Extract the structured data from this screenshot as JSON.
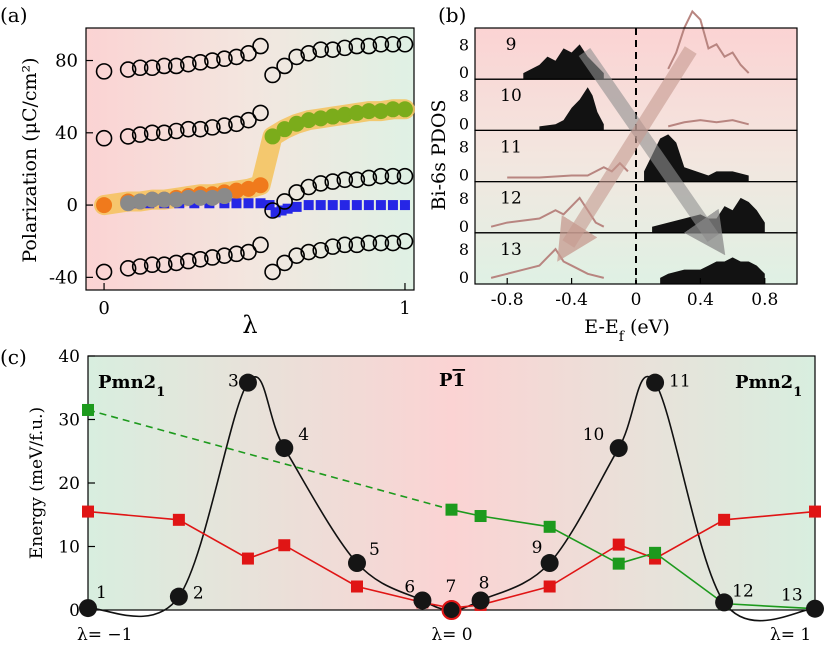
{
  "panel_labels": {
    "a": "(a)",
    "b": "(b)",
    "c": "(c)"
  },
  "colors": {
    "orange": "#f07a1c",
    "green": "#7bac1b",
    "blue": "#2626e6",
    "gray": "#8a8a8a",
    "highlight": "#f5c25a",
    "black_marker": "#151515",
    "red_line": "#e01515",
    "green_line": "#1d9a1d",
    "pdos_curve": "#b88580",
    "arrow": "#c59a8f"
  },
  "chart_data": [
    {
      "id": "a",
      "type": "scatter",
      "title": "",
      "xlabel": "λ",
      "ylabel": "Polarization (μC/cm²)",
      "xlim": [
        -0.06,
        1.03
      ],
      "ylim": [
        -47,
        98
      ],
      "xticks": [
        "0",
        "1"
      ],
      "yticks": [
        "-40",
        "0",
        "40",
        "80"
      ],
      "series": [
        {
          "role": "open_branch_1_left",
          "x": [
            0.0,
            0.08,
            0.12,
            0.16,
            0.2,
            0.24,
            0.28,
            0.32,
            0.36,
            0.4,
            0.44,
            0.48,
            0.52
          ],
          "y": [
            74,
            75,
            76,
            76,
            77,
            77,
            78,
            79,
            80,
            81,
            82,
            84,
            88
          ]
        },
        {
          "role": "open_branch_1_right",
          "x": [
            0.56,
            0.6,
            0.64,
            0.68,
            0.72,
            0.76,
            0.8,
            0.84,
            0.88,
            0.92,
            0.96,
            1.0
          ],
          "y": [
            72,
            77,
            82,
            84,
            86,
            86,
            87,
            88,
            88,
            89,
            89,
            89
          ]
        },
        {
          "role": "open_branch_2_left",
          "x": [
            0.0,
            0.08,
            0.12,
            0.16,
            0.2,
            0.24,
            0.28,
            0.32,
            0.36,
            0.4,
            0.44,
            0.48,
            0.52
          ],
          "y": [
            37,
            38,
            39,
            40,
            40,
            41,
            42,
            42,
            43,
            44,
            45,
            47,
            51
          ]
        },
        {
          "role": "open_branch_2_right",
          "x": [
            0.56,
            0.6,
            0.64,
            0.68,
            0.72,
            0.76,
            0.8,
            0.84,
            0.88,
            0.92,
            0.96,
            1.0
          ],
          "y": [
            -3,
            2,
            7,
            10,
            12,
            13,
            14,
            14,
            15,
            16,
            16,
            16
          ]
        },
        {
          "role": "open_branch_3_left",
          "x": [
            0.0,
            0.08,
            0.12,
            0.16,
            0.2,
            0.24,
            0.28,
            0.32,
            0.36,
            0.4,
            0.44,
            0.48,
            0.52
          ],
          "y": [
            -37,
            -35,
            -34,
            -33,
            -33,
            -32,
            -31,
            -30,
            -29,
            -28,
            -27,
            -26,
            -22
          ]
        },
        {
          "role": "open_branch_3_right",
          "x": [
            0.56,
            0.6,
            0.64,
            0.68,
            0.72,
            0.76,
            0.8,
            0.84,
            0.88,
            0.92,
            0.96,
            1.0
          ],
          "y": [
            -37,
            -32,
            -28,
            -26,
            -25,
            -23,
            -22,
            -22,
            -21,
            -21,
            -21,
            -20
          ]
        },
        {
          "role": "orange_filled",
          "x": [
            0.0,
            0.08,
            0.12,
            0.16,
            0.2,
            0.24,
            0.28,
            0.32,
            0.36,
            0.4,
            0.44,
            0.48,
            0.52
          ],
          "y": [
            0,
            2,
            2,
            3,
            3,
            4,
            5,
            6,
            6,
            7,
            8,
            9,
            11
          ]
        },
        {
          "role": "green_filled",
          "x": [
            0.56,
            0.6,
            0.64,
            0.68,
            0.72,
            0.76,
            0.8,
            0.84,
            0.88,
            0.92,
            0.96,
            1.0
          ],
          "y": [
            38,
            42,
            45,
            47,
            48,
            49,
            50,
            51,
            52,
            52,
            53,
            53
          ]
        },
        {
          "role": "gray_filled",
          "x": [
            0.08,
            0.12,
            0.16,
            0.2,
            0.24,
            0.28,
            0.32,
            0.36,
            0.4
          ],
          "y": [
            1,
            2,
            3,
            3,
            3,
            4,
            4,
            4,
            5
          ]
        },
        {
          "role": "blue_squares",
          "x": [
            0.1,
            0.15,
            0.2,
            0.25,
            0.3,
            0.35,
            0.4,
            0.44,
            0.48,
            0.52,
            0.55,
            0.57,
            0.59,
            0.61,
            0.64,
            0.68,
            0.72,
            0.76,
            0.8,
            0.84,
            0.88,
            0.92,
            0.96,
            1.0
          ],
          "y": [
            1,
            1,
            1,
            1,
            1,
            1,
            1,
            1,
            1,
            1,
            0,
            -4,
            -3,
            -2,
            -1,
            0,
            0,
            0,
            0,
            0,
            0,
            0,
            0,
            0
          ]
        }
      ]
    },
    {
      "id": "b",
      "type": "area",
      "title": "",
      "xlabel": "E-E_f (eV)",
      "ylabel": "Bi-6s PDOS",
      "xlim": [
        -1.0,
        1.0
      ],
      "xticks": [
        "-0.8",
        "-0.4",
        "0",
        "0.4",
        "0.8"
      ],
      "ytick_labels": [
        "0",
        "8"
      ],
      "panels": [
        {
          "label": "9",
          "filled_x": [
            -0.7,
            -0.6,
            -0.55,
            -0.5,
            -0.45,
            -0.4,
            -0.35,
            -0.3,
            -0.25,
            -0.2
          ],
          "filled_y": [
            1,
            3,
            5,
            4,
            7,
            6,
            8,
            5,
            3,
            1
          ],
          "curve_x": [
            0.2,
            0.25,
            0.3,
            0.35,
            0.4,
            0.45,
            0.5,
            0.55,
            0.6,
            0.65,
            0.7
          ],
          "curve_y": [
            2,
            6,
            12,
            16,
            14,
            7,
            8,
            5,
            6,
            3,
            1
          ]
        },
        {
          "label": "10",
          "filled_x": [
            -0.6,
            -0.5,
            -0.45,
            -0.4,
            -0.35,
            -0.3,
            -0.27,
            -0.24,
            -0.2
          ],
          "filled_y": [
            0.5,
            1,
            2,
            5,
            7,
            10,
            8,
            4,
            1
          ],
          "curve_x": [
            0.2,
            0.3,
            0.4,
            0.5,
            0.6,
            0.7
          ],
          "curve_y": [
            0.5,
            1.5,
            2,
            1.5,
            2,
            1
          ]
        },
        {
          "label": "11",
          "filled_x": [
            0.05,
            0.1,
            0.15,
            0.2,
            0.25,
            0.3,
            0.45,
            0.5,
            0.55,
            0.6,
            0.7
          ],
          "filled_y": [
            2,
            6,
            10,
            11,
            9,
            3,
            1,
            2,
            2,
            2,
            1
          ],
          "curve_x": [
            -0.8,
            -0.6,
            -0.4,
            -0.3,
            -0.2,
            -0.15,
            -0.1,
            -0.05
          ],
          "curve_y": [
            0.5,
            0.5,
            1,
            1,
            3,
            2,
            4,
            2
          ]
        },
        {
          "label": "12",
          "filled_x": [
            0.1,
            0.2,
            0.3,
            0.4,
            0.45,
            0.5,
            0.55,
            0.6,
            0.65,
            0.7,
            0.75,
            0.8
          ],
          "filled_y": [
            1,
            2,
            3,
            4,
            3,
            3,
            6,
            5,
            8,
            7,
            5,
            2
          ],
          "curve_x": [
            -0.9,
            -0.8,
            -0.6,
            -0.5,
            -0.45,
            -0.4,
            -0.35,
            -0.3,
            -0.25,
            -0.2
          ],
          "curve_y": [
            1,
            2,
            3,
            5,
            4,
            6,
            8,
            5,
            2,
            1
          ]
        },
        {
          "label": "13",
          "filled_x": [
            0.15,
            0.2,
            0.3,
            0.4,
            0.45,
            0.5,
            0.55,
            0.6,
            0.65,
            0.7,
            0.75,
            0.8
          ],
          "filled_y": [
            1,
            2,
            3,
            3,
            4,
            5,
            5,
            6,
            5,
            5,
            4,
            2
          ],
          "curve_x": [
            -0.9,
            -0.8,
            -0.7,
            -0.6,
            -0.55,
            -0.5,
            -0.45,
            -0.4,
            -0.3,
            -0.2
          ],
          "curve_y": [
            1,
            2,
            3,
            4,
            6,
            8,
            5,
            4,
            2,
            1
          ]
        }
      ]
    },
    {
      "id": "c",
      "type": "line",
      "title": "",
      "xlabel": "",
      "ylabel": "Energy (meV/f.u.)",
      "ylim": [
        0,
        40
      ],
      "yticks": [
        "0",
        "10",
        "20",
        "30",
        "40"
      ],
      "x_labels": [
        "λ= −1",
        "λ= 0",
        "λ= 1"
      ],
      "phase_labels": [
        "Pmn21",
        "P1̄",
        "Pmn21"
      ],
      "series": [
        {
          "role": "black_circles",
          "x": [
            -1.0,
            -0.75,
            -0.56,
            -0.46,
            -0.26,
            -0.08,
            0.0,
            0.08,
            0.27,
            0.46,
            0.56,
            0.75,
            1.0
          ],
          "y": [
            0.3,
            2.1,
            35.8,
            25.5,
            7.4,
            1.5,
            0.0,
            1.5,
            7.4,
            25.5,
            35.8,
            1.2,
            0.2
          ],
          "labels": [
            "1",
            "2",
            "3",
            "4",
            "5",
            "6",
            "7",
            "8",
            "9",
            "10",
            "11",
            "12",
            "13"
          ]
        },
        {
          "role": "red_squares",
          "x": [
            -1.0,
            -0.75,
            -0.56,
            -0.46,
            -0.26,
            -0.08,
            0.0,
            0.08,
            0.27,
            0.46,
            0.56,
            0.75,
            1.0
          ],
          "y": [
            15.5,
            14.2,
            8.1,
            10.2,
            3.7,
            1.2,
            0.3,
            0.8,
            3.7,
            10.3,
            8.1,
            14.2,
            15.5
          ]
        },
        {
          "role": "green_squares",
          "x": [
            -1.0,
            0.0,
            0.08,
            0.27,
            0.46,
            0.56,
            0.75,
            1.0
          ],
          "y": [
            31.5,
            15.8,
            14.8,
            13.1,
            7.3,
            9.0,
            1.0,
            0.2
          ]
        }
      ]
    }
  ]
}
